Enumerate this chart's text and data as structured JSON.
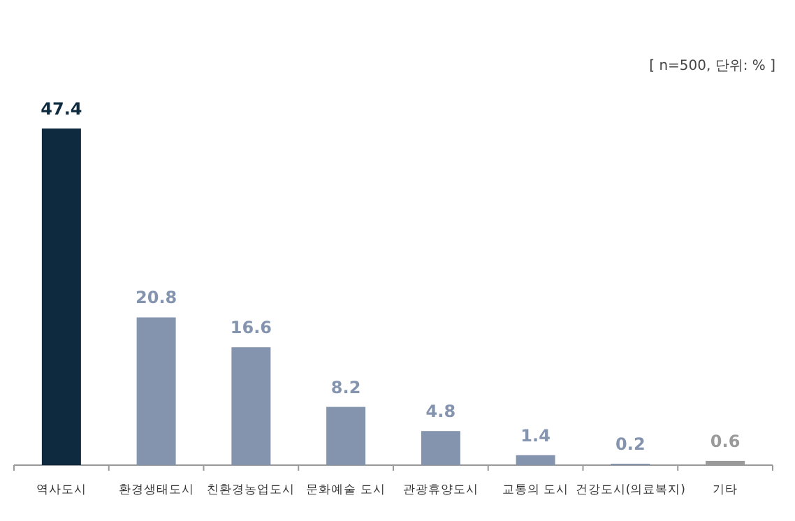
{
  "chart_data": {
    "type": "bar",
    "annotations": [
      "[ n=500, 단위: % ]"
    ],
    "categories": [
      "역사도시",
      "환경생태도시",
      "친환경농업도시",
      "문화예술 도시",
      "관광휴양도시",
      "교통의 도시",
      "건강도시(의료복지)",
      "기타"
    ],
    "values": [
      47.4,
      20.8,
      16.6,
      8.2,
      4.8,
      1.4,
      0.2,
      0.6
    ],
    "colors": [
      "#0d2a3f",
      "#8494ae",
      "#8494ae",
      "#8494ae",
      "#8494ae",
      "#8494ae",
      "#8494ae",
      "#9a9a9a"
    ],
    "data_labels": true
  }
}
